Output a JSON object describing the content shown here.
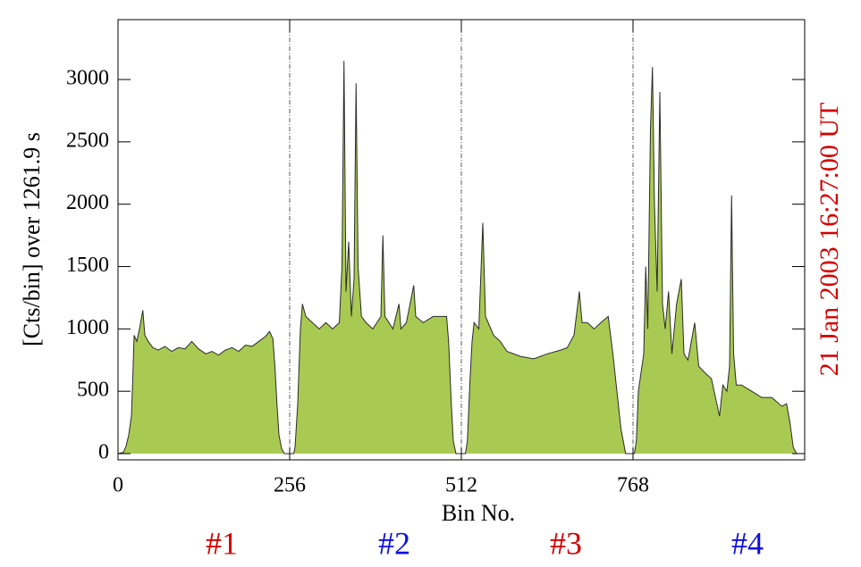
{
  "chart_data": {
    "type": "area",
    "ylabel": "[Cts/bin] over  1261.9 s",
    "xlabel": "Bin No.",
    "side_label": "21 Jan  2003  16:27:00  UT",
    "side_label_color": "#d40000",
    "group_labels": [
      {
        "text": "#1",
        "color": "#d40000"
      },
      {
        "text": "#2",
        "color": "#1010e0"
      },
      {
        "text": "#3",
        "color": "#d40000"
      },
      {
        "text": "#4",
        "color": "#1010e0"
      }
    ],
    "separators": [
      256,
      512,
      768
    ],
    "color": "#a9ca52",
    "line_color": "#2a2a2a",
    "xlim": [
      0,
      1024
    ],
    "xticks": [
      0,
      256,
      512,
      768
    ],
    "ylim": [
      -50,
      3480
    ],
    "yticks": [
      0,
      500,
      1000,
      1500,
      2000,
      2500,
      3000
    ],
    "x": [
      0,
      8,
      12,
      16,
      20,
      22,
      24,
      28,
      32,
      37,
      40,
      45,
      52,
      60,
      70,
      80,
      90,
      100,
      110,
      120,
      131,
      140,
      150,
      160,
      170,
      180,
      190,
      200,
      210,
      220,
      226,
      231,
      234,
      237,
      240,
      244,
      248,
      256,
      262,
      264,
      268,
      272,
      275,
      280,
      290,
      300,
      310,
      320,
      330,
      334,
      337,
      340,
      344,
      348,
      352,
      355,
      358,
      363,
      370,
      380,
      392,
      395,
      398,
      410,
      419,
      422,
      430,
      441,
      444,
      455,
      470,
      480,
      490,
      493,
      497,
      500,
      504,
      512,
      518,
      521,
      525,
      528,
      531,
      538,
      544,
      548,
      552,
      560,
      570,
      580,
      600,
      620,
      640,
      660,
      670,
      680,
      688,
      692,
      700,
      710,
      720,
      731,
      738,
      744,
      750,
      757,
      764,
      770,
      773,
      776,
      780,
      784,
      787,
      790,
      794,
      797,
      800,
      804,
      808,
      812,
      816,
      821,
      826,
      833,
      840,
      844,
      850,
      860,
      866,
      875,
      885,
      891,
      897,
      902,
      908,
      912,
      915,
      918,
      922,
      930,
      945,
      960,
      975,
      990,
      997,
      1002,
      1007,
      1012,
      1024
    ],
    "values": [
      0,
      10,
      60,
      150,
      300,
      600,
      950,
      900,
      1000,
      1150,
      950,
      900,
      850,
      830,
      860,
      820,
      850,
      840,
      900,
      840,
      800,
      820,
      790,
      830,
      850,
      820,
      870,
      860,
      900,
      940,
      980,
      920,
      700,
      400,
      150,
      40,
      0,
      0,
      0,
      50,
      400,
      1000,
      1200,
      1100,
      1050,
      1000,
      1050,
      1000,
      1050,
      1500,
      3150,
      1300,
      1700,
      1100,
      1400,
      2970,
      1500,
      1100,
      1050,
      1000,
      1100,
      1750,
      1100,
      1000,
      1200,
      1000,
      1050,
      1350,
      1100,
      1050,
      1100,
      1100,
      1100,
      900,
      400,
      100,
      0,
      0,
      0,
      100,
      600,
      900,
      1050,
      1000,
      1850,
      1100,
      1050,
      950,
      900,
      820,
      780,
      760,
      800,
      830,
      850,
      950,
      1300,
      1050,
      1050,
      1000,
      1050,
      1100,
      800,
      500,
      200,
      0,
      0,
      0,
      100,
      500,
      650,
      800,
      1500,
      1000,
      2600,
      3100,
      2000,
      1300,
      2900,
      1200,
      1000,
      1300,
      800,
      1200,
      1400,
      800,
      750,
      1050,
      700,
      650,
      600,
      450,
      300,
      550,
      500,
      700,
      2070,
      800,
      550,
      550,
      500,
      450,
      450,
      380,
      400,
      250,
      50,
      0,
      0
    ]
  }
}
